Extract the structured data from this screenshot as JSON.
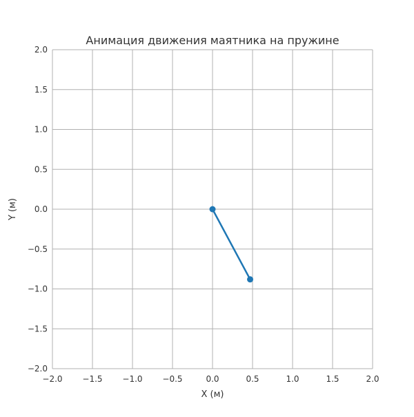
{
  "chart_data": {
    "type": "line",
    "title": "Анимация движения маятника на пружине",
    "xlabel": "X (м)",
    "ylabel": "Y (м)",
    "xlim": [
      -2.0,
      2.0
    ],
    "ylim": [
      -2.0,
      2.0
    ],
    "xticks": [
      -2.0,
      -1.5,
      -1.0,
      -0.5,
      0.0,
      0.5,
      1.0,
      1.5,
      2.0
    ],
    "yticks": [
      -2.0,
      -1.5,
      -1.0,
      -0.5,
      0.0,
      0.5,
      1.0,
      1.5,
      2.0
    ],
    "xtick_labels": [
      "−2.0",
      "−1.5",
      "−1.0",
      "−0.5",
      "0.0",
      "0.5",
      "1.0",
      "1.5",
      "2.0"
    ],
    "ytick_labels": [
      "−2.0",
      "−1.5",
      "−1.0",
      "−0.5",
      "0.0",
      "0.5",
      "1.0",
      "1.5",
      "2.0"
    ],
    "grid": true,
    "series": [
      {
        "x": [
          0.0,
          0.47
        ],
        "y": [
          0.0,
          -0.88
        ],
        "color": "#1f77b4",
        "marker": "circle"
      }
    ]
  },
  "colors": {
    "grid": "#b0b0b0",
    "series": "#1f77b4",
    "text": "#333333"
  }
}
